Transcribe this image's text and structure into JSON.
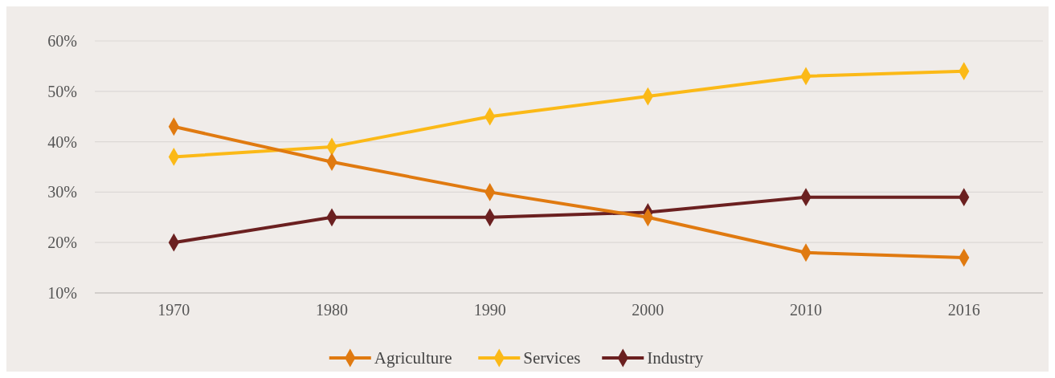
{
  "chart_data": {
    "type": "line",
    "categories": [
      "1970",
      "1980",
      "1990",
      "2000",
      "2010",
      "2016"
    ],
    "series": [
      {
        "name": "Agriculture",
        "color": "#e07a10",
        "values": [
          43,
          36,
          30,
          25,
          18,
          17
        ]
      },
      {
        "name": "Services",
        "color": "#fbb917",
        "values": [
          37,
          39,
          45,
          49,
          53,
          54
        ]
      },
      {
        "name": "Industry",
        "color": "#6b2020",
        "values": [
          20,
          25,
          25,
          26,
          29,
          29
        ]
      }
    ],
    "ylim": [
      10,
      60
    ],
    "yticks": [
      {
        "value": 10,
        "label": "10%"
      },
      {
        "value": 20,
        "label": "20%"
      },
      {
        "value": 30,
        "label": "30%"
      },
      {
        "value": 40,
        "label": "40%"
      },
      {
        "value": 50,
        "label": "50%"
      },
      {
        "value": 60,
        "label": "60%"
      }
    ],
    "grid": "y",
    "legend": "bottom",
    "marker": "diamond",
    "line_style": "solid"
  }
}
